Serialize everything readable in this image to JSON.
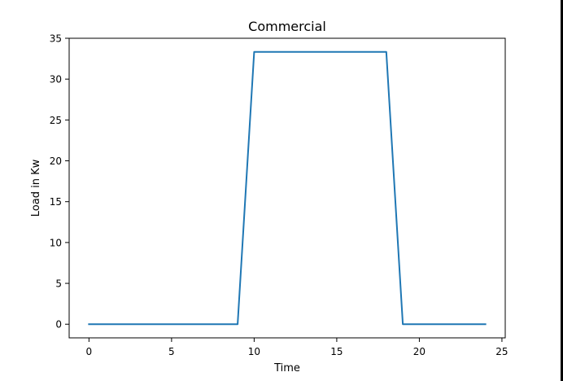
{
  "chart_data": {
    "type": "line",
    "title": "Commercial",
    "xlabel": "Time",
    "ylabel": "Load in Kw",
    "xlim": [
      -1.2,
      25.2
    ],
    "ylim": [
      -1.67,
      35
    ],
    "xticks": [
      0,
      5,
      10,
      15,
      20,
      25
    ],
    "xtick_labels": [
      "0",
      "5",
      "10",
      "15",
      "20",
      "25"
    ],
    "yticks": [
      0,
      5,
      10,
      15,
      20,
      25,
      30,
      35
    ],
    "ytick_labels": [
      "0",
      "5",
      "10",
      "15",
      "20",
      "25",
      "30",
      "35"
    ],
    "grid": false,
    "series": [
      {
        "color": "#1f77b4",
        "x": [
          0,
          1,
          2,
          3,
          4,
          5,
          6,
          7,
          8,
          9,
          10,
          11,
          12,
          13,
          14,
          15,
          16,
          17,
          18,
          19,
          20,
          21,
          22,
          23,
          24
        ],
        "y": [
          0,
          0,
          0,
          0,
          0,
          0,
          0,
          0,
          0,
          0,
          33.33,
          33.33,
          33.33,
          33.33,
          33.33,
          33.33,
          33.33,
          33.33,
          33.33,
          0,
          0,
          0,
          0,
          0,
          0
        ]
      }
    ]
  }
}
